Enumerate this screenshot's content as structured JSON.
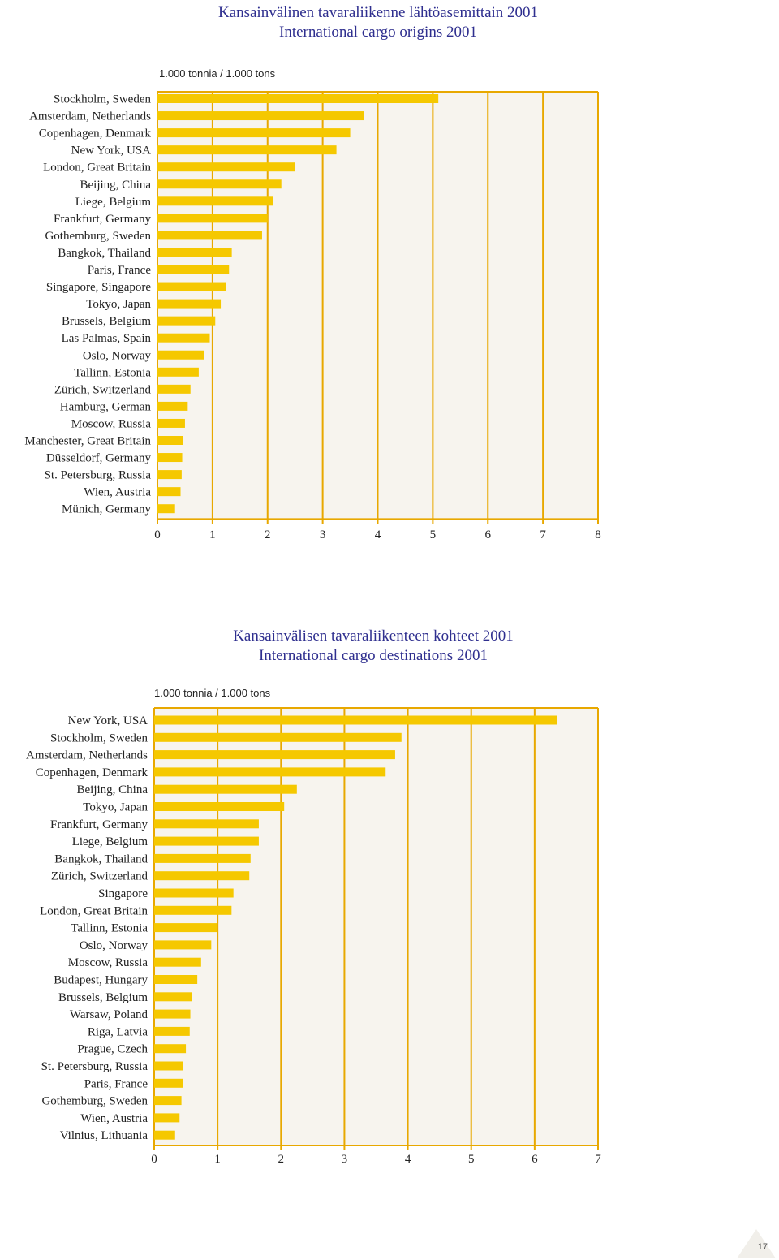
{
  "colors": {
    "bar": "#f5c800",
    "grid": "#e8a800",
    "plot_bg": "#f7f4ee",
    "title": "#2f2f8f"
  },
  "page_number": "17",
  "chart_data": [
    {
      "type": "bar",
      "orientation": "horizontal",
      "title": "Kansainvälinen tavaraliikenne lähtöasemittain 2001",
      "subtitle": "International cargo origins 2001",
      "unit_label": "1.000 tonnia / 1.000 tons",
      "xlim": [
        0,
        8
      ],
      "xticks": [
        0,
        1,
        2,
        3,
        4,
        5,
        6,
        7,
        8
      ],
      "grid": true,
      "categories": [
        "Stockholm, Sweden",
        "Amsterdam, Netherlands",
        "Copenhagen, Denmark",
        "New York, USA",
        "London, Great Britain",
        "Beijing, China",
        "Liege, Belgium",
        "Frankfurt, Germany",
        "Gothemburg, Sweden",
        "Bangkok, Thailand",
        "Paris, France",
        "Singapore, Singapore",
        "Tokyo, Japan",
        "Brussels, Belgium",
        "Las Palmas, Spain",
        "Oslo, Norway",
        "Tallinn, Estonia",
        "Zürich, Switzerland",
        "Hamburg, German",
        "Moscow, Russia",
        "Manchester, Great Britain",
        "Düsseldorf, Germany",
        "St. Petersburg, Russia",
        "Wien, Austria",
        "Münich, Germany"
      ],
      "values": [
        5.1,
        3.75,
        3.5,
        3.25,
        2.5,
        2.25,
        2.1,
        2.0,
        1.9,
        1.35,
        1.3,
        1.25,
        1.15,
        1.05,
        0.95,
        0.85,
        0.75,
        0.6,
        0.55,
        0.5,
        0.47,
        0.45,
        0.44,
        0.42,
        0.32
      ]
    },
    {
      "type": "bar",
      "orientation": "horizontal",
      "title": "Kansainvälisen tavaraliikenteen kohteet 2001",
      "subtitle": "International cargo destinations 2001",
      "unit_label": "1.000 tonnia / 1.000 tons",
      "xlim": [
        0,
        7
      ],
      "xticks": [
        0,
        1,
        2,
        3,
        4,
        5,
        6,
        7
      ],
      "grid": true,
      "categories": [
        "New York, USA",
        "Stockholm, Sweden",
        "Amsterdam, Netherlands",
        "Copenhagen, Denmark",
        "Beijing, China",
        "Tokyo, Japan",
        "Frankfurt, Germany",
        "Liege, Belgium",
        "Bangkok, Thailand",
        "Zürich, Switzerland",
        "Singapore",
        "London, Great Britain",
        "Tallinn, Estonia",
        "Oslo, Norway",
        "Moscow, Russia",
        "Budapest, Hungary",
        "Brussels, Belgium",
        "Warsaw, Poland",
        "Riga, Latvia",
        "Prague, Czech",
        "St. Petersburg, Russia",
        "Paris, France",
        "Gothemburg, Sweden",
        "Wien, Austria",
        "Vilnius, Lithuania"
      ],
      "values": [
        6.35,
        3.9,
        3.8,
        3.65,
        2.25,
        2.05,
        1.65,
        1.65,
        1.52,
        1.5,
        1.25,
        1.22,
        1.0,
        0.9,
        0.74,
        0.68,
        0.6,
        0.57,
        0.56,
        0.5,
        0.46,
        0.45,
        0.43,
        0.4,
        0.33
      ]
    }
  ]
}
